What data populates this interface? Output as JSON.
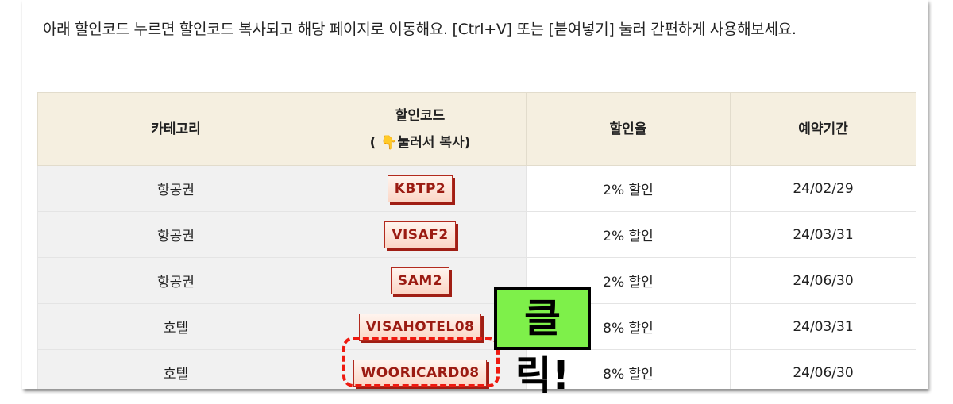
{
  "intro_text": "아래 할인코드 누르면 할인코드 복사되고 해당 페이지로 이동해요. [Ctrl+V] 또는 [붙여넣기] 눌러 간편하게 사용해보세요.",
  "table": {
    "headers": {
      "category": "카테고리",
      "code": "할인코드",
      "code_hint_pre": "(",
      "code_hint_icon": "👇",
      "code_hint": "눌러서 복사)",
      "rate": "할인율",
      "period": "예약기간"
    },
    "rows": [
      {
        "category": "항공권",
        "code": "KBTP2",
        "rate": "2% 할인",
        "period": "24/02/29"
      },
      {
        "category": "항공권",
        "code": "VISAF2",
        "rate": "2% 할인",
        "period": "24/03/31"
      },
      {
        "category": "항공권",
        "code": "SAM2",
        "rate": "2% 할인",
        "period": "24/06/30"
      },
      {
        "category": "호텔",
        "code": "VISAHOTEL08",
        "rate": "8% 할인",
        "period": "24/03/31"
      },
      {
        "category": "호텔",
        "code": "WOORICARD08",
        "rate": "8% 할인",
        "period": "24/06/30"
      }
    ]
  },
  "callout": {
    "text": "클릭!",
    "bg_color": "#7ef04a",
    "highlight_color": "#ee1a10"
  }
}
